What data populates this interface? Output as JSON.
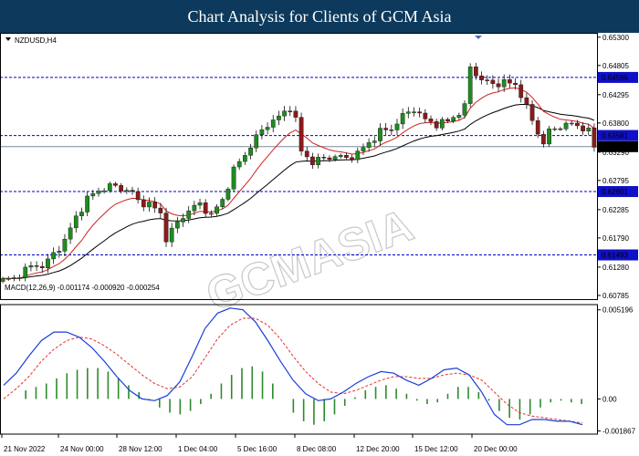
{
  "banner": {
    "title": "Chart Analysis for Clients of GCM Asia"
  },
  "watermark": "GCMASIA",
  "chart_data": {
    "type": "candlestick",
    "symbol_label": "NZDUSD,H4",
    "price_axis": {
      "range": [
        0.6072,
        0.6536
      ],
      "ticks": [
        "0.65300",
        "0.64805",
        "0.64295",
        "0.63800",
        "0.63290",
        "0.62795",
        "0.62285",
        "0.61790",
        "0.61280",
        "0.60785"
      ],
      "tick_values": [
        0.653,
        0.64805,
        0.64295,
        0.638,
        0.6329,
        0.62795,
        0.62285,
        0.6179,
        0.6128,
        0.60785
      ]
    },
    "levels": [
      {
        "label": "0.64596",
        "value": 0.64596,
        "style": "dashed",
        "color": "#0000c8"
      },
      {
        "label": "0.63581",
        "value": 0.63581,
        "style": "dashed",
        "color": "#0000c8"
      },
      {
        "label": "0.62601",
        "value": 0.62601,
        "style": "dashed",
        "color": "#0000c8"
      },
      {
        "label": "0.61493",
        "value": 0.61493,
        "style": "dashed",
        "color": "#0000c8"
      }
    ],
    "current_price": {
      "label": "0.63386",
      "value": 0.63386
    },
    "price_path": [
      [
        0,
        0.6105
      ],
      [
        2,
        0.6108
      ],
      [
        4,
        0.6124
      ],
      [
        6,
        0.6132
      ],
      [
        7,
        0.6129
      ],
      [
        9,
        0.615
      ],
      [
        11,
        0.6175
      ],
      [
        13,
        0.6215
      ],
      [
        15,
        0.6248
      ],
      [
        17,
        0.6262
      ],
      [
        19,
        0.627
      ],
      [
        21,
        0.6266
      ],
      [
        23,
        0.6258
      ],
      [
        24,
        0.6243
      ],
      [
        26,
        0.6238
      ],
      [
        28,
        0.6222
      ],
      [
        29,
        0.6178
      ],
      [
        31,
        0.6205
      ],
      [
        33,
        0.6228
      ],
      [
        35,
        0.6238
      ],
      [
        37,
        0.6219
      ],
      [
        39,
        0.6245
      ],
      [
        41,
        0.6298
      ],
      [
        43,
        0.6325
      ],
      [
        45,
        0.6355
      ],
      [
        47,
        0.6378
      ],
      [
        49,
        0.639
      ],
      [
        51,
        0.6408
      ],
      [
        52,
        0.6385
      ],
      [
        53,
        0.633
      ],
      [
        55,
        0.6312
      ],
      [
        57,
        0.6318
      ],
      [
        59,
        0.6322
      ],
      [
        61,
        0.6318
      ],
      [
        63,
        0.6327
      ],
      [
        65,
        0.6345
      ],
      [
        67,
        0.6365
      ],
      [
        69,
        0.637
      ],
      [
        71,
        0.6392
      ],
      [
        73,
        0.6405
      ],
      [
        75,
        0.6385
      ],
      [
        77,
        0.6378
      ],
      [
        79,
        0.6383
      ],
      [
        81,
        0.6398
      ],
      [
        82,
        0.6408
      ],
      [
        83,
        0.6478
      ],
      [
        85,
        0.6455
      ],
      [
        87,
        0.6448
      ],
      [
        89,
        0.6451
      ],
      [
        91,
        0.6447
      ],
      [
        92,
        0.643
      ],
      [
        93,
        0.6406
      ],
      [
        95,
        0.6363
      ],
      [
        96,
        0.6345
      ],
      [
        97,
        0.6365
      ],
      [
        99,
        0.6375
      ],
      [
        101,
        0.6378
      ],
      [
        103,
        0.6372
      ],
      [
        104,
        0.6365
      ],
      [
        105,
        0.6338
      ]
    ],
    "macd": {
      "label": "MACD(12,26,9) -0.001174 -0.000920 -0.000254",
      "range": [
        -0.00205,
        0.0055
      ],
      "ticks": [
        "0.005196",
        "0.00",
        "-0.001867"
      ],
      "tick_values": [
        0.005196,
        0.0,
        -0.001867
      ],
      "histogram": [
        0.0,
        0.0005,
        0.0007,
        0.0009,
        0.0012,
        0.0015,
        0.0017,
        0.0018,
        0.0018,
        0.0016,
        0.0012,
        0.0008,
        0.0004,
        -0.0001,
        -0.0005,
        -0.0008,
        -0.0009,
        -0.0007,
        -0.0003,
        0.0003,
        0.0009,
        0.0014,
        0.0018,
        0.0019,
        0.0016,
        0.0009,
        0.0,
        -0.0008,
        -0.0013,
        -0.0015,
        -0.0013,
        -0.0009,
        -0.0004,
        0.0001,
        0.0005,
        0.0007,
        0.0008,
        0.0006,
        0.0003,
        -0.0001,
        -0.0003,
        -0.0002,
        0.0003,
        0.0007,
        0.0007,
        0.0004,
        -0.0001,
        -0.0007,
        -0.0011,
        -0.0012,
        -0.0009,
        -0.0005,
        -0.0002,
        -0.0001,
        -0.0002,
        -0.0003
      ],
      "macd_line": [
        0.0008,
        0.0015,
        0.0025,
        0.0034,
        0.0039,
        0.0039,
        0.0036,
        0.003,
        0.0022,
        0.0013,
        0.0005,
        0.0,
        -0.0001,
        0.0002,
        0.001,
        0.0025,
        0.0041,
        0.005,
        0.0053,
        0.0052,
        0.0045,
        0.0034,
        0.0022,
        0.0011,
        0.0003,
        -0.0001,
        0.0,
        0.0004,
        0.0009,
        0.0013,
        0.0016,
        0.0015,
        0.0011,
        0.0008,
        0.0012,
        0.0017,
        0.0018,
        0.0014,
        0.0004,
        -0.0009,
        -0.0015,
        -0.0015,
        -0.0012,
        -0.0012,
        -0.0013,
        -0.0013,
        -0.0015
      ],
      "signal_line": [
        0.0,
        0.0006,
        0.0013,
        0.0022,
        0.0029,
        0.0034,
        0.0036,
        0.0035,
        0.0031,
        0.0026,
        0.002,
        0.0014,
        0.0009,
        0.0006,
        0.0007,
        0.0013,
        0.0024,
        0.0035,
        0.0043,
        0.0047,
        0.0047,
        0.0043,
        0.0035,
        0.0025,
        0.0016,
        0.0009,
        0.0004,
        0.0003,
        0.0005,
        0.0008,
        0.0011,
        0.0013,
        0.0013,
        0.0012,
        0.0012,
        0.0014,
        0.0015,
        0.0014,
        0.0011,
        0.0004,
        -0.0003,
        -0.0008,
        -0.001,
        -0.0011,
        -0.0012,
        -0.0013,
        -0.0014
      ]
    },
    "time_axis": [
      "21 Nov 2022",
      "24 Nov 00:00",
      "28 Nov 12:00",
      "1 Dec 04:00",
      "5 Dec 16:00",
      "8 Dec 08:00",
      "12 Dec 20:00",
      "15 Dec 12:00",
      "20 Dec 00:00"
    ],
    "colors": {
      "up": "#1e8c1e",
      "down": "#8b1a1a",
      "ma_fast": "#cc2222",
      "ma_slow": "#000000",
      "macd_line": "#1a3fd6",
      "signal_line": "#e53030",
      "histogram": "#2d8a2d",
      "level_label_bg": "#1010c8",
      "current_price_bg": "#000000",
      "banner_bg": "#0d3a5c"
    }
  }
}
